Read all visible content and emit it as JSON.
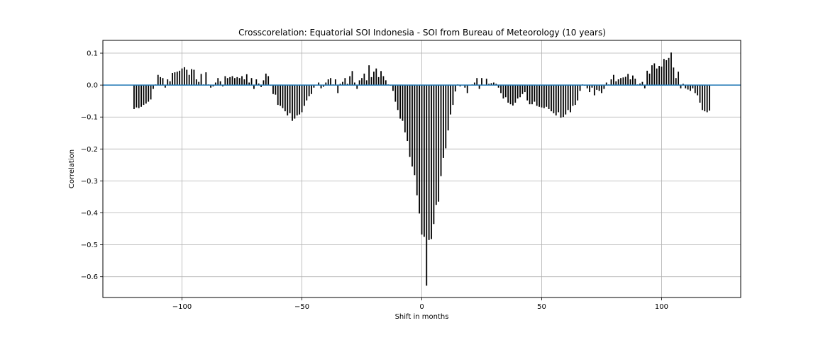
{
  "chart_data": {
    "type": "bar",
    "title": "Crosscorelation: Equatorial SOI Indonesia - SOI from Bureau of Meteorology (10 years)",
    "xlabel": "Shift in months",
    "ylabel": "Correlation",
    "xlim": [
      -133,
      133
    ],
    "ylim": [
      -0.665,
      0.14
    ],
    "x_ticks": [
      -100,
      -50,
      0,
      50,
      100
    ],
    "x_tick_labels": [
      "−100",
      "−50",
      "0",
      "50",
      "100"
    ],
    "y_ticks": [
      0.1,
      0.0,
      -0.1,
      -0.2,
      -0.3,
      -0.4,
      -0.5,
      -0.6
    ],
    "y_tick_labels": [
      "0.1",
      "0.0",
      "−0.1",
      "−0.2",
      "−0.3",
      "−0.4",
      "−0.5",
      "−0.6"
    ],
    "grid": true,
    "bar_color": "#000000",
    "zero_line_color": "#1f77b4",
    "lag_start": -120,
    "lag_end": 120,
    "values": [
      -0.075,
      -0.07,
      -0.072,
      -0.068,
      -0.062,
      -0.058,
      -0.052,
      -0.045,
      -0.012,
      0.002,
      0.032,
      0.025,
      0.022,
      -0.008,
      0.018,
      0.012,
      0.038,
      0.04,
      0.042,
      0.045,
      0.052,
      0.056,
      0.048,
      0.032,
      0.05,
      0.048,
      0.018,
      0.01,
      0.035,
      0.002,
      0.04,
      0.002,
      -0.008,
      -0.004,
      0.008,
      0.022,
      0.012,
      -0.004,
      0.028,
      0.022,
      0.025,
      0.028,
      0.022,
      0.025,
      0.022,
      0.028,
      0.018,
      0.034,
      0.008,
      0.022,
      -0.012,
      0.018,
      0.005,
      -0.006,
      0.015,
      0.036,
      0.028,
      -0.002,
      -0.028,
      -0.03,
      -0.062,
      -0.065,
      -0.072,
      -0.082,
      -0.095,
      -0.088,
      -0.112,
      -0.105,
      -0.095,
      -0.092,
      -0.085,
      -0.065,
      -0.048,
      -0.035,
      -0.028,
      -0.008,
      0.001,
      0.008,
      -0.01,
      -0.005,
      0.008,
      0.018,
      0.022,
      0.002,
      0.018,
      -0.025,
      0.004,
      0.01,
      0.022,
      0.004,
      0.028,
      0.044,
      0.008,
      -0.012,
      0.015,
      0.022,
      0.036,
      0.015,
      0.062,
      0.025,
      0.042,
      0.052,
      0.025,
      0.044,
      0.028,
      0.015,
      0.002,
      -0.002,
      -0.018,
      -0.052,
      -0.078,
      -0.105,
      -0.112,
      -0.148,
      -0.175,
      -0.225,
      -0.255,
      -0.282,
      -0.345,
      -0.402,
      -0.468,
      -0.475,
      -0.628,
      -0.485,
      -0.482,
      -0.435,
      -0.375,
      -0.365,
      -0.285,
      -0.228,
      -0.198,
      -0.142,
      -0.092,
      -0.062,
      -0.02,
      0.002,
      -0.004,
      0.001,
      -0.008,
      -0.025,
      0.001,
      0.002,
      0.008,
      0.022,
      -0.012,
      0.022,
      0.001,
      0.02,
      0.004,
      0.006,
      0.008,
      0.004,
      -0.008,
      -0.025,
      -0.042,
      -0.038,
      -0.055,
      -0.06,
      -0.064,
      -0.055,
      -0.042,
      -0.038,
      -0.028,
      -0.022,
      -0.048,
      -0.06,
      -0.06,
      -0.052,
      -0.065,
      -0.068,
      -0.07,
      -0.072,
      -0.068,
      -0.075,
      -0.082,
      -0.088,
      -0.095,
      -0.085,
      -0.102,
      -0.1,
      -0.092,
      -0.078,
      -0.085,
      -0.065,
      -0.062,
      -0.048,
      -0.018,
      0.002,
      -0.002,
      -0.01,
      -0.022,
      -0.008,
      -0.032,
      -0.015,
      -0.018,
      -0.025,
      -0.012,
      0.008,
      0.002,
      0.018,
      0.032,
      0.012,
      0.018,
      0.022,
      0.024,
      0.026,
      0.035,
      0.018,
      0.03,
      0.02,
      0.002,
      0.005,
      0.01,
      -0.01,
      0.045,
      0.036,
      0.062,
      0.068,
      0.052,
      0.06,
      0.058,
      0.082,
      0.078,
      0.085,
      0.102,
      0.055,
      0.022,
      0.042,
      -0.01,
      0.004,
      -0.01,
      -0.014,
      -0.018,
      -0.01,
      -0.025,
      -0.032,
      -0.055,
      -0.078,
      -0.082,
      -0.085,
      -0.08
    ]
  }
}
